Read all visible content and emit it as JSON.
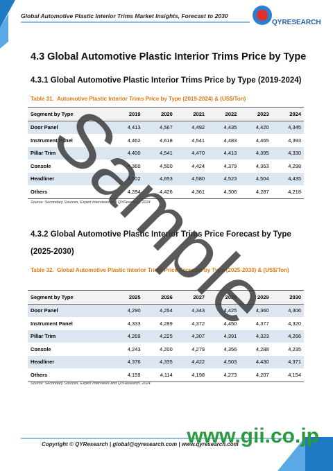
{
  "header": {
    "title": "Global Automotive Plastic Interior Trims Market Insights, Forecast to 2030",
    "logo": "QYRESEARCH"
  },
  "section": {
    "heading": "4.3  Global Automotive Plastic Interior Trims Price by Type"
  },
  "sub1": {
    "heading": "4.3.1  Global Automotive Plastic Interior Trims Price by Type (2019-2024)",
    "caption_label": "Table 31.",
    "caption": "Automotive Plastic Interior Trims Price by Type (2019-2024) & (US$/Ton)",
    "table": {
      "columns": [
        "Segment by Type",
        "2019",
        "2020",
        "2021",
        "2022",
        "2023",
        "2024"
      ],
      "rows": [
        [
          "Door Panel",
          "4,413",
          "4,567",
          "4,492",
          "4,435",
          "4,420",
          "4,345"
        ],
        [
          "Instrument Panel",
          "4,462",
          "4,618",
          "4,541",
          "4,483",
          "4,465",
          "4,393"
        ],
        [
          "Pillar Trim",
          "4,400",
          "4,541",
          "4,470",
          "4,413",
          "4,395",
          "4,330"
        ],
        [
          "Console",
          "4,360",
          "4,500",
          "4,424",
          "4,379",
          "4,363",
          "4,298"
        ],
        [
          "Headliner",
          "4,502",
          "4,653",
          "4,580",
          "4,523",
          "4,504",
          "4,435"
        ],
        [
          "Others",
          "4,284",
          "4,426",
          "4,361",
          "4,306",
          "4,287",
          "4,218"
        ]
      ]
    },
    "source": "Source: Secondary Sources, Expert Interviews and QYResearch, 2024"
  },
  "sub2": {
    "heading": "4.3.2  Global Automotive Plastic Interior Trims Price Forecast by Type (2025-2030)",
    "caption_label": "Table 32.",
    "caption": "Global Automotive Plastic Interior Trims Price Forecast by Type (2025-2030) & (US$/Ton)",
    "table": {
      "columns": [
        "Segment by Type",
        "2025",
        "2026",
        "2027",
        "2028",
        "2029",
        "2030"
      ],
      "rows": [
        [
          "Door Panel",
          "4,290",
          "4,254",
          "4,343",
          "4,425",
          "4,360",
          "4,306"
        ],
        [
          "Instrument Panel",
          "4,333",
          "4,289",
          "4,372",
          "4,450",
          "4,377",
          "4,320"
        ],
        [
          "Pillar Trim",
          "4,269",
          "4,225",
          "4,307",
          "4,391",
          "4,323",
          "4,266"
        ],
        [
          "Console",
          "4,243",
          "4,200",
          "4,279",
          "4,356",
          "4,288",
          "4,235"
        ],
        [
          "Headliner",
          "4,376",
          "4,335",
          "4,422",
          "4,503",
          "4,430",
          "4,371"
        ],
        [
          "Others",
          "4,159",
          "4,114",
          "4,198",
          "4,273",
          "4,207",
          "4,154"
        ]
      ]
    },
    "source": "Source: Secondary Sources, Expert Interviews and QYResearch, 2024"
  },
  "footer": "Copyright © QYResearch | global@qyresearch.com | www.qyresearch.com",
  "watermark": "Sample",
  "site": "www.gii.co.jp"
}
